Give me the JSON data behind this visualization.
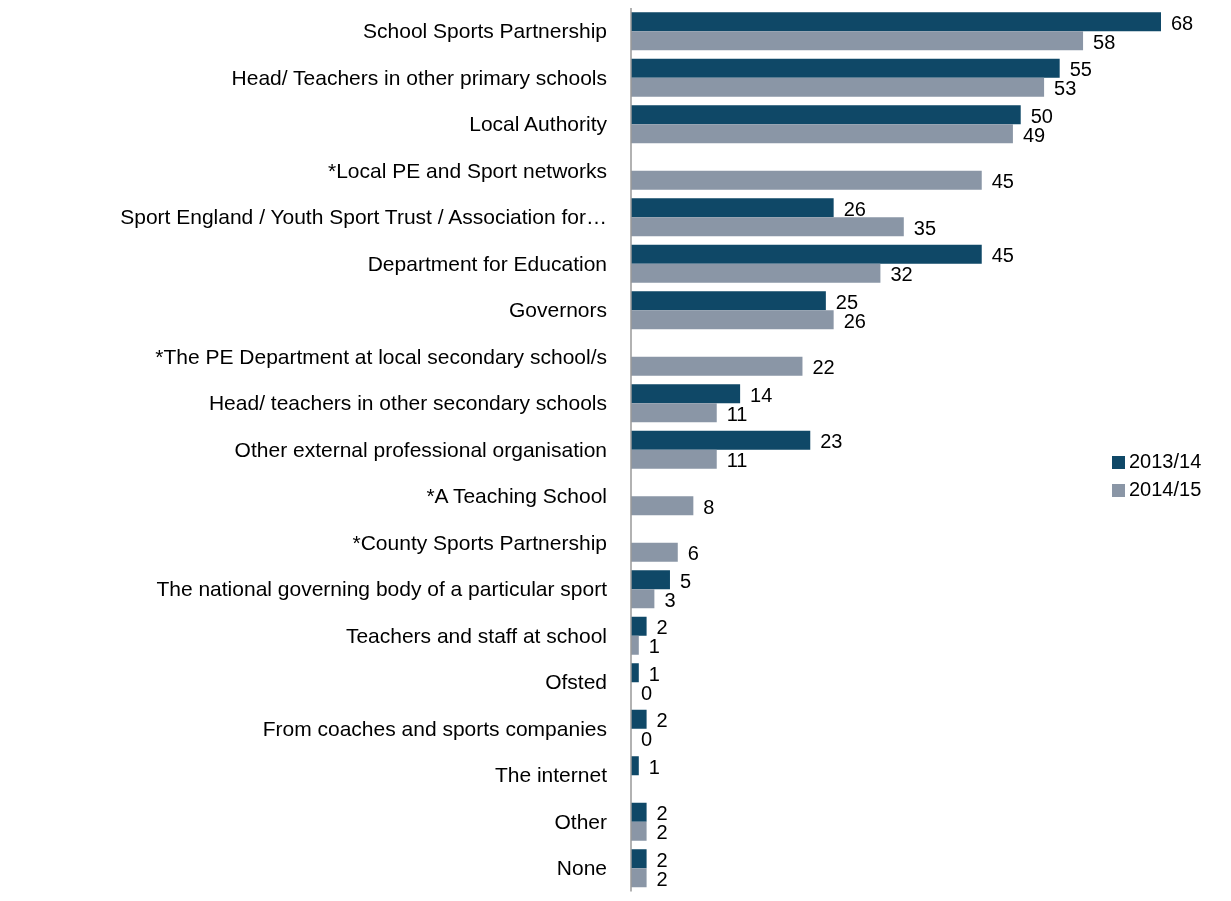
{
  "chart_data": {
    "type": "bar",
    "orientation": "horizontal",
    "data_labels": true,
    "legend": "right",
    "categories": [
      "School Sports Partnership",
      "Head/ Teachers in other primary schools",
      "Local Authority",
      "*Local PE and Sport networks",
      "Sport England / Youth Sport Trust / Association for…",
      "Department for Education",
      "Governors",
      "*The PE Department at local secondary school/s",
      "Head/ teachers in other secondary schools",
      "Other external professional organisation",
      "*A Teaching School",
      "*County Sports Partnership",
      "The national governing body of a particular sport",
      "Teachers and staff at school",
      "Ofsted",
      "From coaches and sports companies",
      "The internet",
      "Other",
      "None"
    ],
    "series": [
      {
        "name": "2013/14",
        "color": "#0f4867",
        "values": [
          68,
          55,
          50,
          null,
          26,
          45,
          25,
          null,
          14,
          23,
          null,
          null,
          5,
          2,
          1,
          2,
          1,
          2,
          2
        ]
      },
      {
        "name": "2014/15",
        "color": "#8a96a6",
        "values": [
          58,
          53,
          49,
          45,
          35,
          32,
          26,
          22,
          11,
          11,
          8,
          6,
          3,
          1,
          0,
          0,
          null,
          2,
          2
        ]
      }
    ]
  }
}
